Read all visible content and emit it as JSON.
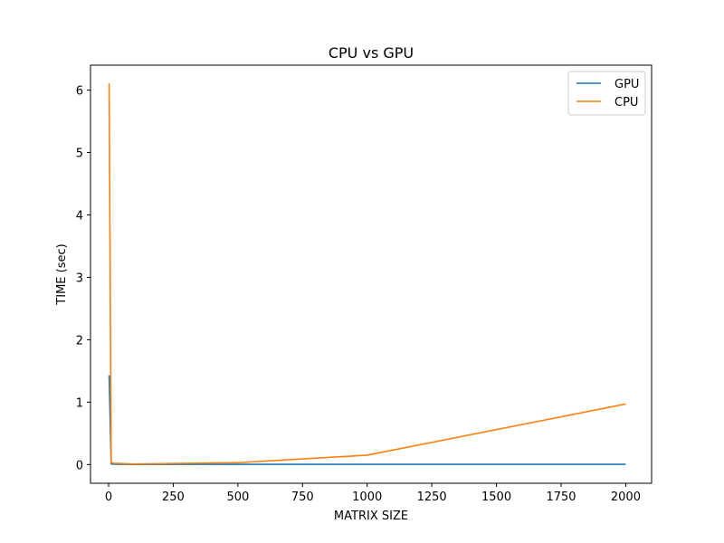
{
  "chart_data": {
    "type": "line",
    "title": "CPU vs GPU",
    "xlabel": "MATRIX SIZE",
    "ylabel": "TIME (sec)",
    "xlim": [
      -70,
      2100
    ],
    "ylim": [
      -0.3,
      6.4
    ],
    "xticks": [
      0,
      250,
      500,
      750,
      1000,
      1250,
      1500,
      1750,
      2000
    ],
    "yticks": [
      0,
      1,
      2,
      3,
      4,
      5,
      6
    ],
    "grid": false,
    "legend_position": "top-right",
    "series": [
      {
        "name": "GPU",
        "color": "#1f77b4",
        "x": [
          2,
          10,
          20,
          100,
          500,
          1000,
          2000
        ],
        "y": [
          1.43,
          0.01,
          0.005,
          0.003,
          0.003,
          0.003,
          0.004
        ]
      },
      {
        "name": "CPU",
        "color": "#ff7f0e",
        "x": [
          2,
          10,
          20,
          100,
          500,
          1000,
          2000
        ],
        "y": [
          6.11,
          0.03,
          0.02,
          0.01,
          0.03,
          0.15,
          0.97
        ]
      }
    ]
  }
}
